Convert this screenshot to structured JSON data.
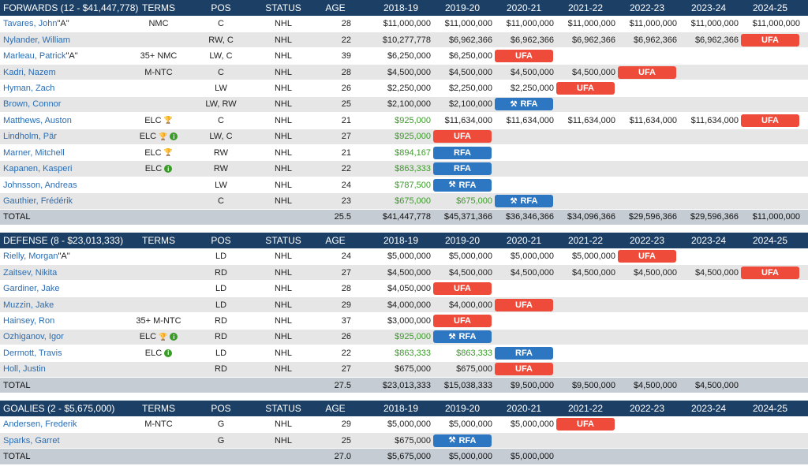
{
  "years": [
    "2018-19",
    "2019-20",
    "2020-21",
    "2021-22",
    "2022-23",
    "2023-24",
    "2024-25"
  ],
  "header_labels": {
    "terms": "TERMS",
    "pos": "POS",
    "status": "STATUS",
    "age": "AGE"
  },
  "sections": [
    {
      "title": "FORWARDS (12 - $41,447,778)",
      "players": [
        {
          "name": "Tavares, John",
          "suffix": " \"A\"",
          "terms": "NMC",
          "pos": "C",
          "status": "NHL",
          "age": "28",
          "cells": [
            "$11,000,000",
            "$11,000,000",
            "$11,000,000",
            "$11,000,000",
            "$11,000,000",
            "$11,000,000",
            "$11,000,000"
          ]
        },
        {
          "name": "Nylander, William",
          "suffix": "",
          "terms": "",
          "pos": "RW, C",
          "status": "NHL",
          "age": "22",
          "cells": [
            "$10,277,778",
            "$6,962,366",
            "$6,962,366",
            "$6,962,366",
            "$6,962,366",
            "$6,962,366",
            "UFA"
          ]
        },
        {
          "name": "Marleau, Patrick",
          "suffix": " \"A\"",
          "terms": "35+ NMC",
          "pos": "LW, C",
          "status": "NHL",
          "age": "39",
          "cells": [
            "$6,250,000",
            "$6,250,000",
            "UFA",
            "",
            "",
            "",
            ""
          ]
        },
        {
          "name": "Kadri, Nazem",
          "suffix": "",
          "terms": "M-NTC",
          "pos": "C",
          "status": "NHL",
          "age": "28",
          "cells": [
            "$4,500,000",
            "$4,500,000",
            "$4,500,000",
            "$4,500,000",
            "UFA",
            "",
            ""
          ]
        },
        {
          "name": "Hyman, Zach",
          "suffix": "",
          "terms": "",
          "pos": "LW",
          "status": "NHL",
          "age": "26",
          "cells": [
            "$2,250,000",
            "$2,250,000",
            "$2,250,000",
            "UFA",
            "",
            "",
            ""
          ]
        },
        {
          "name": "Brown, Connor",
          "suffix": "",
          "terms": "",
          "pos": "LW, RW",
          "status": "NHL",
          "age": "25",
          "cells": [
            "$2,100,000",
            "$2,100,000",
            "RFA*",
            "",
            "",
            "",
            ""
          ]
        },
        {
          "name": "Matthews, Auston",
          "suffix": "",
          "terms": "ELC",
          "terms_icons": [
            "trophy"
          ],
          "pos": "C",
          "status": "NHL",
          "age": "21",
          "cells": [
            "$925,000",
            "$11,634,000",
            "$11,634,000",
            "$11,634,000",
            "$11,634,000",
            "$11,634,000",
            "UFA"
          ],
          "green": [
            0
          ]
        },
        {
          "name": "Lindholm, Pär",
          "suffix": "",
          "terms": "ELC",
          "terms_icons": [
            "trophy",
            "info"
          ],
          "pos": "LW, C",
          "status": "NHL",
          "age": "27",
          "cells": [
            "$925,000",
            "UFA",
            "",
            "",
            "",
            "",
            ""
          ],
          "green": [
            0
          ]
        },
        {
          "name": "Marner, Mitchell",
          "suffix": "",
          "terms": "ELC",
          "terms_icons": [
            "trophy"
          ],
          "pos": "RW",
          "status": "NHL",
          "age": "21",
          "cells": [
            "$894,167",
            "RFA",
            "",
            "",
            "",
            "",
            ""
          ],
          "green": [
            0
          ]
        },
        {
          "name": "Kapanen, Kasperi",
          "suffix": "",
          "terms": "ELC",
          "terms_icons": [
            "info"
          ],
          "pos": "RW",
          "status": "NHL",
          "age": "22",
          "cells": [
            "$863,333",
            "RFA",
            "",
            "",
            "",
            "",
            ""
          ],
          "green": [
            0
          ]
        },
        {
          "name": "Johnsson, Andreas",
          "suffix": "",
          "terms": "",
          "pos": "LW",
          "status": "NHL",
          "age": "24",
          "cells": [
            "$787,500",
            "RFA*",
            "",
            "",
            "",
            "",
            ""
          ],
          "green": [
            0
          ]
        },
        {
          "name": "Gauthier, Frédérik",
          "suffix": "",
          "terms": "",
          "pos": "C",
          "status": "NHL",
          "age": "23",
          "cells": [
            "$675,000",
            "$675,000",
            "RFA*",
            "",
            "",
            "",
            ""
          ],
          "green": [
            0,
            1
          ]
        }
      ],
      "total": {
        "label": "TOTAL",
        "age": "25.5",
        "cells": [
          "$41,447,778",
          "$45,371,366",
          "$36,346,366",
          "$34,096,366",
          "$29,596,366",
          "$29,596,366",
          "$11,000,000"
        ]
      }
    },
    {
      "title": "DEFENSE (8 - $23,013,333)",
      "players": [
        {
          "name": "Rielly, Morgan",
          "suffix": " \"A\"",
          "terms": "",
          "pos": "LD",
          "status": "NHL",
          "age": "24",
          "cells": [
            "$5,000,000",
            "$5,000,000",
            "$5,000,000",
            "$5,000,000",
            "UFA",
            "",
            ""
          ]
        },
        {
          "name": "Zaitsev, Nikita",
          "suffix": "",
          "terms": "",
          "pos": "RD",
          "status": "NHL",
          "age": "27",
          "cells": [
            "$4,500,000",
            "$4,500,000",
            "$4,500,000",
            "$4,500,000",
            "$4,500,000",
            "$4,500,000",
            "UFA"
          ]
        },
        {
          "name": "Gardiner, Jake",
          "suffix": "",
          "terms": "",
          "pos": "LD",
          "status": "NHL",
          "age": "28",
          "cells": [
            "$4,050,000",
            "UFA",
            "",
            "",
            "",
            "",
            ""
          ]
        },
        {
          "name": "Muzzin, Jake",
          "suffix": "",
          "terms": "",
          "pos": "LD",
          "status": "NHL",
          "age": "29",
          "cells": [
            "$4,000,000",
            "$4,000,000",
            "UFA",
            "",
            "",
            "",
            ""
          ]
        },
        {
          "name": "Hainsey, Ron",
          "suffix": "",
          "terms": "35+ M-NTC",
          "pos": "RD",
          "status": "NHL",
          "age": "37",
          "cells": [
            "$3,000,000",
            "UFA",
            "",
            "",
            "",
            "",
            ""
          ]
        },
        {
          "name": "Ozhiganov, Igor",
          "suffix": "",
          "terms": "ELC",
          "terms_icons": [
            "trophy",
            "info"
          ],
          "pos": "RD",
          "status": "NHL",
          "age": "26",
          "cells": [
            "$925,000",
            "RFA*",
            "",
            "",
            "",
            "",
            ""
          ],
          "green": [
            0
          ]
        },
        {
          "name": "Dermott, Travis",
          "suffix": "",
          "terms": "ELC",
          "terms_icons": [
            "info"
          ],
          "pos": "LD",
          "status": "NHL",
          "age": "22",
          "cells": [
            "$863,333",
            "$863,333",
            "RFA",
            "",
            "",
            "",
            ""
          ],
          "green": [
            0,
            1
          ]
        },
        {
          "name": "Holl, Justin",
          "suffix": "",
          "terms": "",
          "pos": "RD",
          "status": "NHL",
          "age": "27",
          "cells": [
            "$675,000",
            "$675,000",
            "UFA",
            "",
            "",
            "",
            ""
          ]
        }
      ],
      "total": {
        "label": "TOTAL",
        "age": "27.5",
        "cells": [
          "$23,013,333",
          "$15,038,333",
          "$9,500,000",
          "$9,500,000",
          "$4,500,000",
          "$4,500,000",
          ""
        ]
      }
    },
    {
      "title": "GOALIES (2 - $5,675,000)",
      "players": [
        {
          "name": "Andersen, Frederik",
          "suffix": "",
          "terms": "M-NTC",
          "pos": "G",
          "status": "NHL",
          "age": "29",
          "cells": [
            "$5,000,000",
            "$5,000,000",
            "$5,000,000",
            "UFA",
            "",
            "",
            ""
          ]
        },
        {
          "name": "Sparks, Garret",
          "suffix": "",
          "terms": "",
          "pos": "G",
          "status": "NHL",
          "age": "25",
          "cells": [
            "$675,000",
            "RFA*",
            "",
            "",
            "",
            "",
            ""
          ]
        }
      ],
      "total": {
        "label": "TOTAL",
        "age": "27.0",
        "cells": [
          "$5,675,000",
          "$5,000,000",
          "$5,000,000",
          "",
          "",
          "",
          ""
        ]
      }
    }
  ]
}
